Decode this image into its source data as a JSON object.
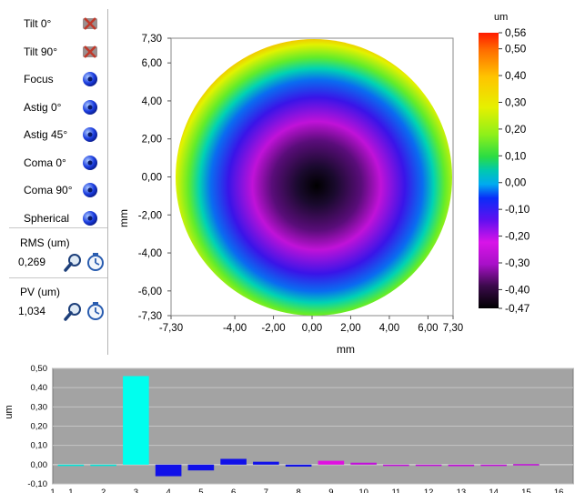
{
  "terms": [
    {
      "label": "Tilt 0°",
      "icon": "tilt-0-disabled-icon",
      "state": "disabled"
    },
    {
      "label": "Tilt 90°",
      "icon": "tilt-90-disabled-icon",
      "state": "disabled"
    },
    {
      "label": "Focus",
      "icon": "focus-term-icon",
      "state": "enabled"
    },
    {
      "label": "Astig 0°",
      "icon": "astig-0-term-icon",
      "state": "enabled"
    },
    {
      "label": "Astig 45°",
      "icon": "astig-45-term-icon",
      "state": "enabled"
    },
    {
      "label": "Coma 0°",
      "icon": "coma-0-term-icon",
      "state": "enabled"
    },
    {
      "label": "Coma 90°",
      "icon": "coma-90-term-icon",
      "state": "enabled"
    },
    {
      "label": "Spherical",
      "icon": "spherical-term-icon",
      "state": "enabled"
    }
  ],
  "rms": {
    "title": "RMS (um)",
    "value": "0,269"
  },
  "pv": {
    "title": "PV (um)",
    "value": "1,034"
  },
  "map": {
    "xlabel": "mm",
    "ylabel": "mm",
    "xticks": [
      "-7,30",
      "-4,00",
      "-2,00",
      "0,00",
      "2,00",
      "4,00",
      "6,00",
      "7,30"
    ],
    "yticks": [
      "7,30",
      "6,00",
      "4,00",
      "2,00",
      "0,00",
      "-2,00",
      "-4,00",
      "-6,00",
      "-7,30"
    ],
    "range_min": -7.3,
    "range_max": 7.3
  },
  "colorbar": {
    "unit": "um",
    "min": -0.47,
    "max": 0.56,
    "ticks": [
      "0,56",
      "0,50",
      "0,40",
      "0,30",
      "0,20",
      "0,10",
      "0,00",
      "-0,10",
      "-0,20",
      "-0,30",
      "-0,40",
      "-0,47"
    ],
    "tick_values": [
      0.56,
      0.5,
      0.4,
      0.3,
      0.2,
      0.1,
      0.0,
      -0.1,
      -0.2,
      -0.3,
      -0.4,
      -0.47
    ]
  },
  "chart_data": {
    "type": "bar",
    "ylabel": "um",
    "ylim": [
      -0.1,
      0.5
    ],
    "yticks": [
      "0,50",
      "0,40",
      "0,30",
      "0,20",
      "0,10",
      "0,00",
      "-0,10"
    ],
    "ytick_values": [
      0.5,
      0.4,
      0.3,
      0.2,
      0.1,
      0.0,
      -0.1
    ],
    "xticks": [
      "1",
      "1",
      "2",
      "3",
      "4",
      "5",
      "6",
      "7",
      "8",
      "9",
      "10",
      "11",
      "12",
      "13",
      "14",
      "15",
      "16"
    ],
    "categories": [
      1,
      2,
      3,
      4,
      5,
      6,
      7,
      8,
      9,
      10,
      11,
      12,
      13,
      14,
      15
    ],
    "values": [
      -0.005,
      -0.005,
      0.46,
      -0.06,
      -0.03,
      0.03,
      0.015,
      -0.01,
      0.02,
      0.01,
      -0.005,
      -0.005,
      -0.008,
      -0.004,
      0.003
    ],
    "colors": [
      "#00e5d8",
      "#00e5d8",
      "#00ffee",
      "#1010e8",
      "#1010e8",
      "#1010e8",
      "#1010e8",
      "#1010e8",
      "#e010e0",
      "#c010d8",
      "#c010d8",
      "#c010d8",
      "#c010d8",
      "#c010d8",
      "#c010d8"
    ],
    "grid": true
  }
}
